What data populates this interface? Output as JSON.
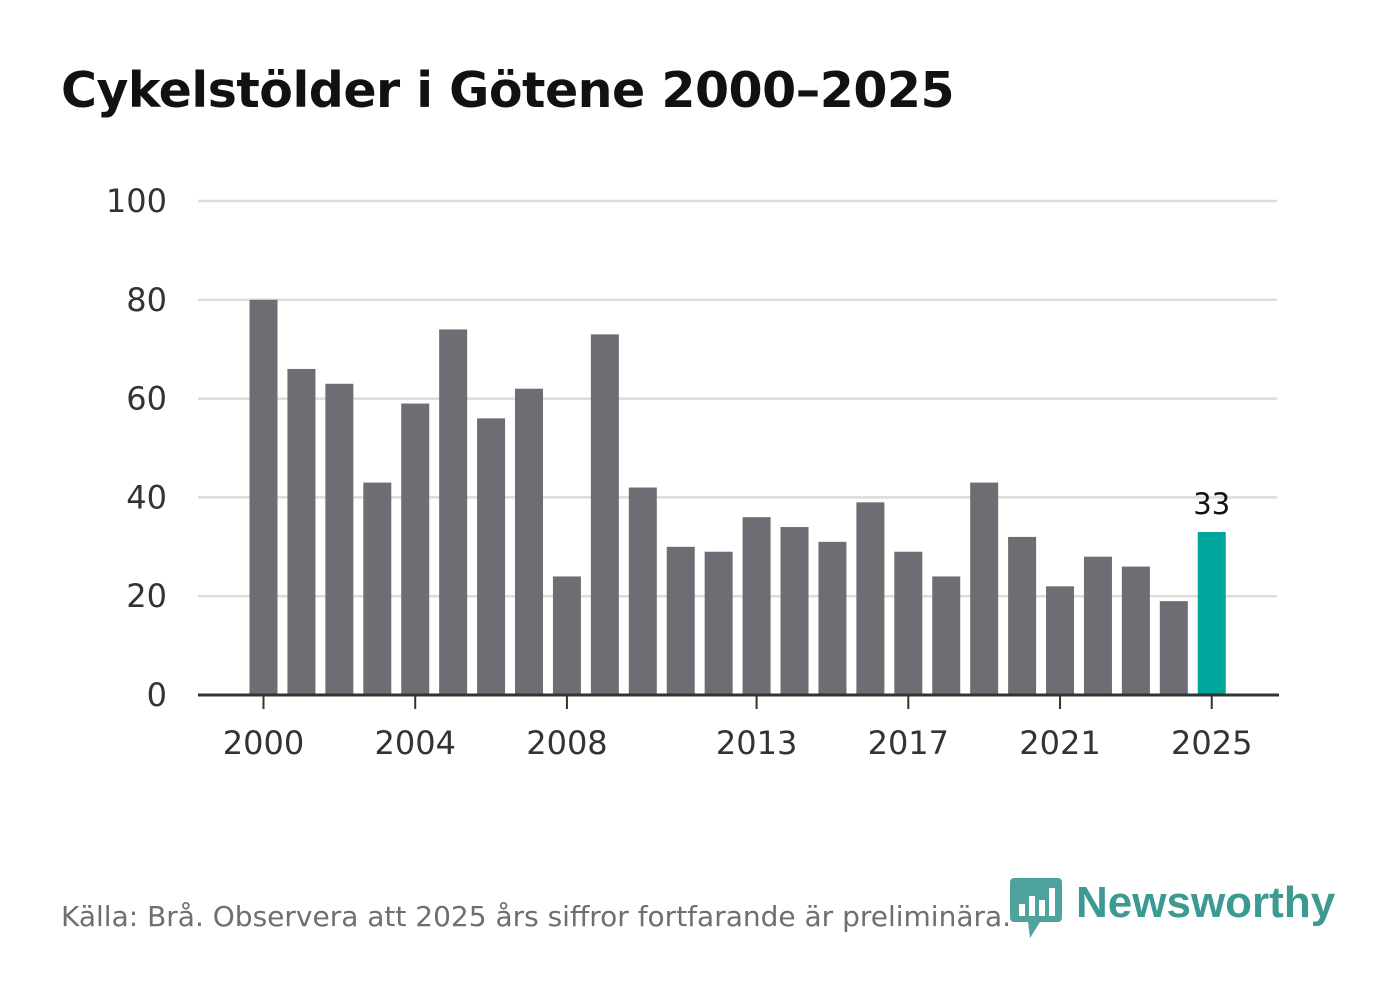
{
  "title": "Cykelstölder i Götene 2000–2025",
  "source": "Källa: Brå. Observera att 2025 års siffror fortfarande är preliminära.",
  "logo_text": "Newsworthy",
  "colors": {
    "bar": "#6e6d73",
    "highlight": "#00a59b",
    "grid": "#dcdcdc",
    "axis": "#333333",
    "brand": "#3b9a92"
  },
  "chart_data": {
    "type": "bar",
    "title": "Cykelstölder i Götene 2000–2025",
    "xlabel": "",
    "ylabel": "",
    "categories": [
      "2000",
      "2001",
      "2002",
      "2003",
      "2004",
      "2005",
      "2006",
      "2007",
      "2008",
      "2009",
      "2010",
      "2011",
      "2012",
      "2013",
      "2014",
      "2015",
      "2016",
      "2017",
      "2018",
      "2019",
      "2020",
      "2021",
      "2022",
      "2023",
      "2024",
      "2025"
    ],
    "values": [
      80,
      66,
      63,
      43,
      59,
      74,
      56,
      62,
      24,
      73,
      42,
      30,
      29,
      36,
      34,
      31,
      39,
      29,
      24,
      43,
      32,
      22,
      28,
      26,
      19,
      33
    ],
    "highlight_category": "2025",
    "data_labels": [
      {
        "category": "2025",
        "text": "33"
      }
    ],
    "ylim": [
      0,
      100
    ],
    "yticks": [
      0,
      20,
      40,
      60,
      80,
      100
    ],
    "xtick_labels": [
      "2000",
      "2004",
      "2008",
      "2013",
      "2017",
      "2021",
      "2025"
    ],
    "grid": true
  }
}
